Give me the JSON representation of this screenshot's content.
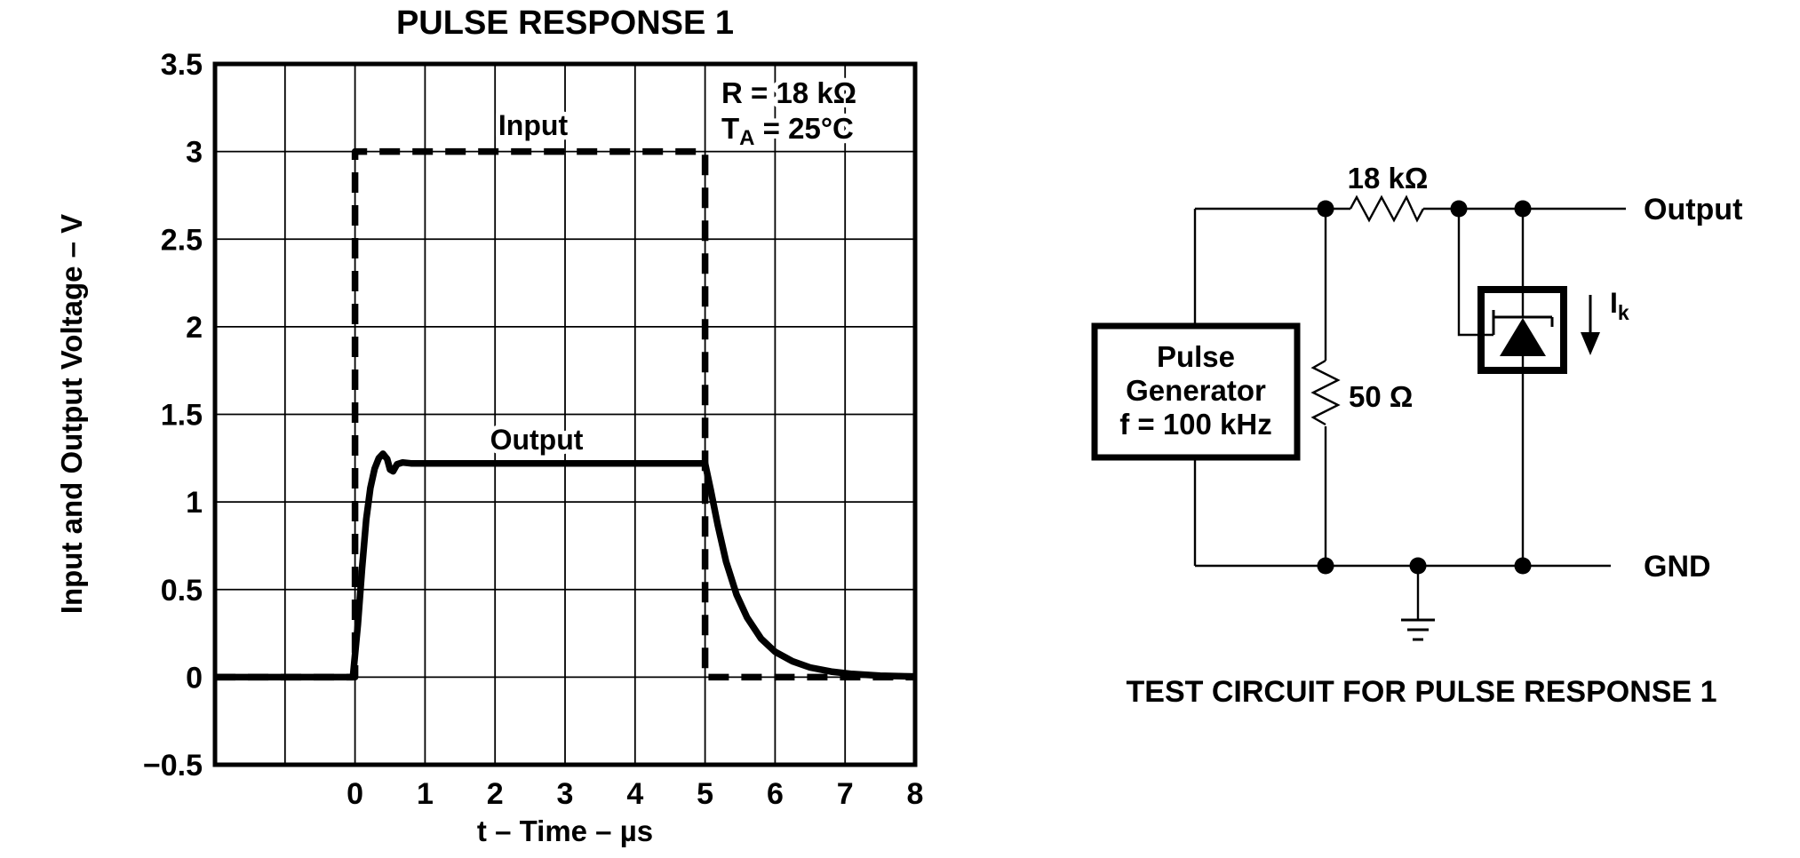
{
  "page": {
    "background": "#ffffff",
    "ink": "#000000"
  },
  "chart": {
    "title": "PULSE RESPONSE 1",
    "y_axis_title": "Input and Output Voltage – V",
    "x_axis_title": "t – Time – µs",
    "input_label": "Input",
    "output_label": "Output",
    "annotation": {
      "line1": "R = 18 kΩ",
      "line2_pre": "T",
      "line2_sub": "A",
      "line2_post": " = 25°C"
    }
  },
  "circuit": {
    "caption": "TEST CIRCUIT FOR PULSE RESPONSE 1",
    "series_resistor_label": "18 kΩ",
    "shunt_resistor_label": "50 Ω",
    "output_label": "Output",
    "gnd_label": "GND",
    "generator_line1": "Pulse",
    "generator_line2": "Generator",
    "generator_line3": "f = 100 kHz",
    "cathode_current_pre": "I",
    "cathode_current_sub": "k"
  },
  "chart_data": {
    "type": "line",
    "title": "PULSE RESPONSE 1",
    "xlabel": "t – Time – µs",
    "ylabel": "Input and Output Voltage – V",
    "xlim": [
      -2,
      8
    ],
    "ylim": [
      -0.5,
      3.5
    ],
    "x_grid_step": 1,
    "y_grid_step": 0.5,
    "grid": true,
    "legend_position": "inline-labels",
    "annotations": [
      "R = 18 kΩ",
      "TA = 25°C"
    ],
    "x_ticks": [
      {
        "v": 0,
        "label": "0"
      },
      {
        "v": 1,
        "label": "1"
      },
      {
        "v": 2,
        "label": "2"
      },
      {
        "v": 3,
        "label": "3"
      },
      {
        "v": 4,
        "label": "4"
      },
      {
        "v": 5,
        "label": "5"
      },
      {
        "v": 6,
        "label": "6"
      },
      {
        "v": 7,
        "label": "7"
      },
      {
        "v": 8,
        "label": "8"
      }
    ],
    "y_ticks": [
      {
        "v": 3.5,
        "label": "3.5"
      },
      {
        "v": 3,
        "label": "3"
      },
      {
        "v": 2.5,
        "label": "2.5"
      },
      {
        "v": 2,
        "label": "2"
      },
      {
        "v": 1.5,
        "label": "1.5"
      },
      {
        "v": 1,
        "label": "1"
      },
      {
        "v": 0.5,
        "label": "0.5"
      },
      {
        "v": 0,
        "label": "0"
      },
      {
        "v": -0.5,
        "label": "−0.5"
      }
    ],
    "series": [
      {
        "name": "Input",
        "style": "dashed",
        "points": [
          [
            -2,
            0
          ],
          [
            0,
            0
          ],
          [
            0,
            3
          ],
          [
            5,
            3
          ],
          [
            5,
            0
          ],
          [
            8,
            0
          ]
        ]
      },
      {
        "name": "Output",
        "style": "solid",
        "points": [
          [
            -2,
            0
          ],
          [
            -0.03,
            0
          ],
          [
            0.04,
            0.3
          ],
          [
            0.1,
            0.62
          ],
          [
            0.16,
            0.9
          ],
          [
            0.22,
            1.08
          ],
          [
            0.28,
            1.19
          ],
          [
            0.34,
            1.25
          ],
          [
            0.4,
            1.275
          ],
          [
            0.46,
            1.245
          ],
          [
            0.5,
            1.185
          ],
          [
            0.545,
            1.175
          ],
          [
            0.6,
            1.215
          ],
          [
            0.68,
            1.225
          ],
          [
            0.8,
            1.22
          ],
          [
            5.0,
            1.22
          ],
          [
            5.08,
            1.07
          ],
          [
            5.18,
            0.87
          ],
          [
            5.3,
            0.66
          ],
          [
            5.45,
            0.47
          ],
          [
            5.6,
            0.34
          ],
          [
            5.8,
            0.22
          ],
          [
            6.0,
            0.145
          ],
          [
            6.25,
            0.09
          ],
          [
            6.5,
            0.055
          ],
          [
            6.8,
            0.032
          ],
          [
            7.1,
            0.018
          ],
          [
            7.5,
            0.008
          ],
          [
            8,
            0.004
          ]
        ]
      }
    ]
  }
}
